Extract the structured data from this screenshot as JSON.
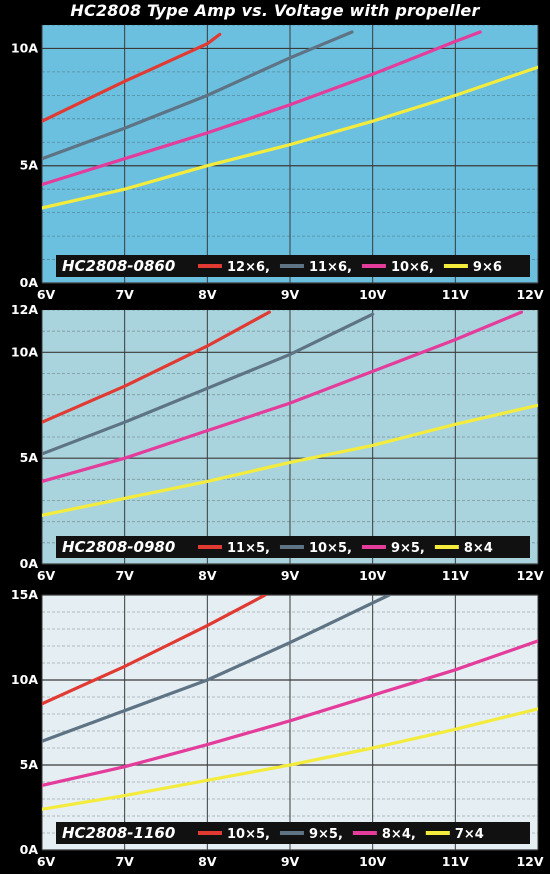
{
  "title": "HC2808 Type  Amp vs. Voltage with propeller",
  "colors": {
    "red": "#e03a33",
    "gray": "#5e7384",
    "magenta": "#e33c9a",
    "yellow": "#f4ec3c",
    "grid": "#3a3a3a"
  },
  "chart_data": [
    {
      "type": "line",
      "model": "HC2808-0860",
      "background": "#6cc0df",
      "x_unit": "V",
      "y_unit": "A",
      "xlim": [
        6,
        12
      ],
      "ylim": [
        0,
        11
      ],
      "x_ticks": [
        "6V",
        "7V",
        "8V",
        "9V",
        "10V",
        "11V",
        "12V"
      ],
      "y_ticks": [
        {
          "value": 0,
          "label": "0A"
        },
        {
          "value": 5,
          "label": "5A"
        },
        {
          "value": 10,
          "label": "10A"
        }
      ],
      "series": [
        {
          "name": "12×6,",
          "color": "red",
          "points": [
            [
              6,
              6.9
            ],
            [
              7,
              8.6
            ],
            [
              8,
              10.2
            ],
            [
              8.15,
              10.6
            ]
          ]
        },
        {
          "name": "11×6,",
          "color": "gray",
          "points": [
            [
              6,
              5.3
            ],
            [
              7,
              6.6
            ],
            [
              8,
              8.0
            ],
            [
              9,
              9.6
            ],
            [
              9.75,
              10.7
            ]
          ]
        },
        {
          "name": "10×6,",
          "color": "magenta",
          "points": [
            [
              6,
              4.2
            ],
            [
              7,
              5.3
            ],
            [
              8,
              6.4
            ],
            [
              9,
              7.6
            ],
            [
              10,
              8.9
            ],
            [
              11,
              10.3
            ],
            [
              11.3,
              10.7
            ]
          ]
        },
        {
          "name": "9×6",
          "color": "yellow",
          "points": [
            [
              6,
              3.2
            ],
            [
              7,
              4.0
            ],
            [
              8,
              5.0
            ],
            [
              9,
              5.9
            ],
            [
              10,
              6.9
            ],
            [
              11,
              8.0
            ],
            [
              12,
              9.2
            ]
          ]
        }
      ],
      "legend": "bottom"
    },
    {
      "type": "line",
      "model": "HC2808-0980",
      "background": "#a9d4de",
      "x_unit": "V",
      "y_unit": "A",
      "xlim": [
        6,
        12
      ],
      "ylim": [
        0,
        12
      ],
      "x_ticks": [
        "6V",
        "7V",
        "8V",
        "9V",
        "10V",
        "11V",
        "12V"
      ],
      "y_ticks": [
        {
          "value": 0,
          "label": "0A"
        },
        {
          "value": 5,
          "label": "5A"
        },
        {
          "value": 10,
          "label": "10A"
        },
        {
          "value": 12,
          "label": "12A"
        }
      ],
      "series": [
        {
          "name": "11×5,",
          "color": "red",
          "points": [
            [
              6,
              6.7
            ],
            [
              7,
              8.4
            ],
            [
              8,
              10.3
            ],
            [
              8.75,
              11.9
            ]
          ]
        },
        {
          "name": "10×5,",
          "color": "gray",
          "points": [
            [
              6,
              5.2
            ],
            [
              7,
              6.7
            ],
            [
              8,
              8.3
            ],
            [
              9,
              9.9
            ],
            [
              10,
              11.8
            ]
          ]
        },
        {
          "name": "9×5,",
          "color": "magenta",
          "points": [
            [
              6,
              3.9
            ],
            [
              7,
              5.0
            ],
            [
              8,
              6.3
            ],
            [
              9,
              7.6
            ],
            [
              10,
              9.1
            ],
            [
              11,
              10.6
            ],
            [
              11.8,
              11.9
            ]
          ]
        },
        {
          "name": "8×4",
          "color": "yellow",
          "points": [
            [
              6,
              2.3
            ],
            [
              7,
              3.1
            ],
            [
              8,
              3.9
            ],
            [
              9,
              4.8
            ],
            [
              10,
              5.6
            ],
            [
              11,
              6.6
            ],
            [
              12,
              7.5
            ]
          ]
        }
      ],
      "legend": "bottom"
    },
    {
      "type": "line",
      "model": "HC2808-1160",
      "background": "#e4eef3",
      "x_unit": "V",
      "y_unit": "A",
      "xlim": [
        6,
        12
      ],
      "ylim": [
        0,
        15
      ],
      "x_ticks": [
        "6V",
        "7V",
        "8V",
        "9V",
        "10V",
        "11V",
        "12V"
      ],
      "y_ticks": [
        {
          "value": 0,
          "label": "0A"
        },
        {
          "value": 5,
          "label": "5A"
        },
        {
          "value": 10,
          "label": "10A"
        },
        {
          "value": 15,
          "label": "15A"
        }
      ],
      "series": [
        {
          "name": "10×5,",
          "color": "red",
          "points": [
            [
              6,
              8.6
            ],
            [
              7,
              10.8
            ],
            [
              8,
              13.2
            ],
            [
              8.7,
              15.0
            ]
          ]
        },
        {
          "name": "9×5,",
          "color": "gray",
          "points": [
            [
              6,
              6.4
            ],
            [
              7,
              8.2
            ],
            [
              8,
              10.0
            ],
            [
              9,
              12.2
            ],
            [
              10.2,
              15.0
            ]
          ]
        },
        {
          "name": "8×4,",
          "color": "magenta",
          "points": [
            [
              6,
              3.8
            ],
            [
              7,
              4.9
            ],
            [
              8,
              6.2
            ],
            [
              9,
              7.6
            ],
            [
              10,
              9.1
            ],
            [
              11,
              10.6
            ],
            [
              12,
              12.3
            ]
          ]
        },
        {
          "name": "7×4",
          "color": "yellow",
          "points": [
            [
              6,
              2.4
            ],
            [
              7,
              3.2
            ],
            [
              8,
              4.1
            ],
            [
              9,
              5.0
            ],
            [
              10,
              6.0
            ],
            [
              11,
              7.1
            ],
            [
              12,
              8.3
            ]
          ]
        }
      ],
      "legend": "bottom"
    }
  ]
}
